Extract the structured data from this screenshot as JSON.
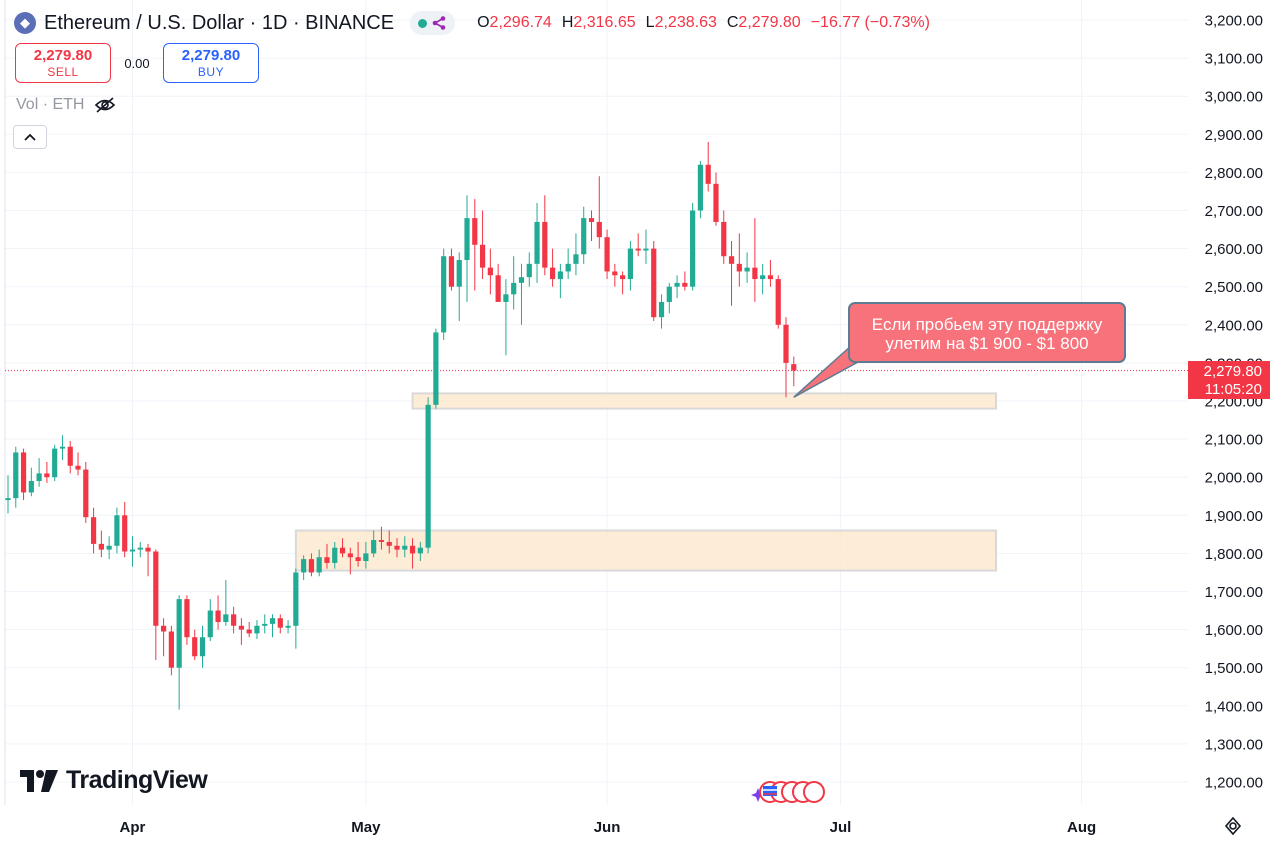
{
  "header": {
    "symbol_title": "Ethereum / U.S. Dollar · 1D · BINANCE",
    "ohlc": [
      {
        "key": "O",
        "value": "2,296.74"
      },
      {
        "key": "H",
        "value": "2,316.65"
      },
      {
        "key": "L",
        "value": "2,238.63"
      },
      {
        "key": "C",
        "value": "2,279.80"
      },
      {
        "key": "",
        "value": "−16.77 (−0.73%)"
      }
    ]
  },
  "trade": {
    "sell_price": "2,279.80",
    "sell_label": "SELL",
    "spread": "0.00",
    "buy_price": "2,279.80",
    "buy_label": "BUY"
  },
  "volume": {
    "label": "Vol · ETH"
  },
  "logo": {
    "text": "TradingView"
  },
  "current_price": {
    "price": "2,279.80",
    "countdown": "11:05:20"
  },
  "annotation": {
    "line1": "Если пробьем эту поддержку",
    "line2": "улетим на $1 900 - $1 800"
  },
  "colors": {
    "up": "#22ab94",
    "down": "#f23645",
    "zone_fill": "#fde9cf",
    "zone_stroke": "#d9d9d9",
    "callout": "#f7727b"
  },
  "icons": [
    "ethereum-coin-icon",
    "eye-off-icon",
    "chevron-up-icon",
    "settings-icon",
    "news-flags-icon"
  ],
  "chart_data": {
    "type": "candlestick",
    "title": "Ethereum / U.S. Dollar · 1D · BINANCE",
    "y_axis_position": "right",
    "ylim": [
      1160,
      3230
    ],
    "y_ticks": [
      1200,
      1300,
      1400,
      1500,
      1600,
      1700,
      1800,
      1900,
      2000,
      2100,
      2200,
      2300,
      2400,
      2500,
      2600,
      2700,
      2800,
      2900,
      3000,
      3100,
      3200
    ],
    "y_tick_labels": [
      "1,200.00",
      "1,300.00",
      "1,400.00",
      "1,500.00",
      "1,600.00",
      "1,700.00",
      "1,800.00",
      "1,900.00",
      "2,000.00",
      "2,100.00",
      "2,200.00",
      "2,300.00",
      "2,400.00",
      "2,500.00",
      "2,600.00",
      "2,700.00",
      "2,800.00",
      "2,900.00",
      "3,000.00",
      "3,100.00",
      "3,200.00"
    ],
    "x_tick_labels": [
      {
        "label": "Apr",
        "date": "2024-04-01"
      },
      {
        "label": "May",
        "date": "2024-05-01"
      },
      {
        "label": "Jun",
        "date": "2024-06-01"
      },
      {
        "label": "Jul",
        "date": "2024-07-01"
      },
      {
        "label": "Aug",
        "date": "2024-08-01"
      }
    ],
    "x_range": [
      "2024-03-16",
      "2024-08-16"
    ],
    "grid": true,
    "current_price": 2279.8,
    "zones": [
      {
        "start": "2024-05-07",
        "end": "2024-07-21",
        "low": 2180,
        "high": 2220
      },
      {
        "start": "2024-04-22",
        "end": "2024-07-21",
        "low": 1755,
        "high": 1860
      }
    ],
    "candles": [
      {
        "date": "2024-03-16",
        "o": 1940,
        "h": 2005,
        "l": 1905,
        "c": 1945
      },
      {
        "date": "2024-03-17",
        "o": 1945,
        "h": 2080,
        "l": 1920,
        "c": 2065
      },
      {
        "date": "2024-03-18",
        "o": 2065,
        "h": 2075,
        "l": 1940,
        "c": 1960
      },
      {
        "date": "2024-03-19",
        "o": 1960,
        "h": 2025,
        "l": 1950,
        "c": 1990
      },
      {
        "date": "2024-03-20",
        "o": 1990,
        "h": 2050,
        "l": 1975,
        "c": 2010
      },
      {
        "date": "2024-03-21",
        "o": 2010,
        "h": 2040,
        "l": 1985,
        "c": 2000
      },
      {
        "date": "2024-03-22",
        "o": 2000,
        "h": 2085,
        "l": 1990,
        "c": 2075
      },
      {
        "date": "2024-03-23",
        "o": 2075,
        "h": 2110,
        "l": 2045,
        "c": 2080
      },
      {
        "date": "2024-03-24",
        "o": 2080,
        "h": 2095,
        "l": 2010,
        "c": 2030
      },
      {
        "date": "2024-03-25",
        "o": 2030,
        "h": 2065,
        "l": 2005,
        "c": 2020
      },
      {
        "date": "2024-03-26",
        "o": 2020,
        "h": 2040,
        "l": 1880,
        "c": 1895
      },
      {
        "date": "2024-03-27",
        "o": 1895,
        "h": 1920,
        "l": 1800,
        "c": 1825
      },
      {
        "date": "2024-03-28",
        "o": 1825,
        "h": 1860,
        "l": 1790,
        "c": 1810
      },
      {
        "date": "2024-03-29",
        "o": 1810,
        "h": 1845,
        "l": 1785,
        "c": 1820
      },
      {
        "date": "2024-03-30",
        "o": 1820,
        "h": 1920,
        "l": 1800,
        "c": 1900
      },
      {
        "date": "2024-03-31",
        "o": 1900,
        "h": 1935,
        "l": 1790,
        "c": 1805
      },
      {
        "date": "2024-04-01",
        "o": 1805,
        "h": 1845,
        "l": 1765,
        "c": 1810
      },
      {
        "date": "2024-04-02",
        "o": 1810,
        "h": 1830,
        "l": 1790,
        "c": 1815
      },
      {
        "date": "2024-04-03",
        "o": 1815,
        "h": 1825,
        "l": 1740,
        "c": 1805
      },
      {
        "date": "2024-04-04",
        "o": 1805,
        "h": 1810,
        "l": 1520,
        "c": 1610
      },
      {
        "date": "2024-04-05",
        "o": 1610,
        "h": 1630,
        "l": 1530,
        "c": 1595
      },
      {
        "date": "2024-04-06",
        "o": 1595,
        "h": 1610,
        "l": 1480,
        "c": 1500
      },
      {
        "date": "2024-04-07",
        "o": 1500,
        "h": 1690,
        "l": 1390,
        "c": 1680
      },
      {
        "date": "2024-04-08",
        "o": 1680,
        "h": 1690,
        "l": 1560,
        "c": 1580
      },
      {
        "date": "2024-04-09",
        "o": 1580,
        "h": 1600,
        "l": 1520,
        "c": 1530
      },
      {
        "date": "2024-04-10",
        "o": 1530,
        "h": 1610,
        "l": 1500,
        "c": 1580
      },
      {
        "date": "2024-04-11",
        "o": 1580,
        "h": 1680,
        "l": 1570,
        "c": 1650
      },
      {
        "date": "2024-04-12",
        "o": 1650,
        "h": 1690,
        "l": 1600,
        "c": 1620
      },
      {
        "date": "2024-04-13",
        "o": 1620,
        "h": 1730,
        "l": 1610,
        "c": 1640
      },
      {
        "date": "2024-04-14",
        "o": 1640,
        "h": 1660,
        "l": 1590,
        "c": 1610
      },
      {
        "date": "2024-04-15",
        "o": 1610,
        "h": 1630,
        "l": 1560,
        "c": 1600
      },
      {
        "date": "2024-04-16",
        "o": 1600,
        "h": 1620,
        "l": 1580,
        "c": 1590
      },
      {
        "date": "2024-04-17",
        "o": 1590,
        "h": 1625,
        "l": 1575,
        "c": 1610
      },
      {
        "date": "2024-04-18",
        "o": 1610,
        "h": 1640,
        "l": 1590,
        "c": 1615
      },
      {
        "date": "2024-04-19",
        "o": 1615,
        "h": 1640,
        "l": 1580,
        "c": 1630
      },
      {
        "date": "2024-04-20",
        "o": 1630,
        "h": 1640,
        "l": 1590,
        "c": 1605
      },
      {
        "date": "2024-04-21",
        "o": 1605,
        "h": 1625,
        "l": 1590,
        "c": 1610
      },
      {
        "date": "2024-04-22",
        "o": 1610,
        "h": 1760,
        "l": 1550,
        "c": 1750
      },
      {
        "date": "2024-04-23",
        "o": 1750,
        "h": 1795,
        "l": 1730,
        "c": 1785
      },
      {
        "date": "2024-04-24",
        "o": 1785,
        "h": 1800,
        "l": 1740,
        "c": 1750
      },
      {
        "date": "2024-04-25",
        "o": 1750,
        "h": 1810,
        "l": 1740,
        "c": 1790
      },
      {
        "date": "2024-04-26",
        "o": 1790,
        "h": 1825,
        "l": 1760,
        "c": 1775
      },
      {
        "date": "2024-04-27",
        "o": 1775,
        "h": 1830,
        "l": 1760,
        "c": 1815
      },
      {
        "date": "2024-04-28",
        "o": 1815,
        "h": 1840,
        "l": 1790,
        "c": 1800
      },
      {
        "date": "2024-04-29",
        "o": 1800,
        "h": 1815,
        "l": 1745,
        "c": 1790
      },
      {
        "date": "2024-04-30",
        "o": 1790,
        "h": 1830,
        "l": 1765,
        "c": 1780
      },
      {
        "date": "2024-05-01",
        "o": 1780,
        "h": 1830,
        "l": 1760,
        "c": 1800
      },
      {
        "date": "2024-05-02",
        "o": 1800,
        "h": 1860,
        "l": 1790,
        "c": 1835
      },
      {
        "date": "2024-05-03",
        "o": 1835,
        "h": 1870,
        "l": 1810,
        "c": 1830
      },
      {
        "date": "2024-05-04",
        "o": 1830,
        "h": 1860,
        "l": 1800,
        "c": 1820
      },
      {
        "date": "2024-05-05",
        "o": 1820,
        "h": 1840,
        "l": 1790,
        "c": 1810
      },
      {
        "date": "2024-05-06",
        "o": 1810,
        "h": 1845,
        "l": 1790,
        "c": 1820
      },
      {
        "date": "2024-05-07",
        "o": 1820,
        "h": 1840,
        "l": 1760,
        "c": 1800
      },
      {
        "date": "2024-05-08",
        "o": 1800,
        "h": 1830,
        "l": 1780,
        "c": 1815
      },
      {
        "date": "2024-05-09",
        "o": 1815,
        "h": 2210,
        "l": 1800,
        "c": 2190
      },
      {
        "date": "2024-05-10",
        "o": 2190,
        "h": 2390,
        "l": 2180,
        "c": 2380
      },
      {
        "date": "2024-05-11",
        "o": 2380,
        "h": 2600,
        "l": 2360,
        "c": 2580
      },
      {
        "date": "2024-05-12",
        "o": 2580,
        "h": 2600,
        "l": 2490,
        "c": 2500
      },
      {
        "date": "2024-05-13",
        "o": 2500,
        "h": 2590,
        "l": 2410,
        "c": 2570
      },
      {
        "date": "2024-05-14",
        "o": 2570,
        "h": 2740,
        "l": 2460,
        "c": 2680
      },
      {
        "date": "2024-05-15",
        "o": 2680,
        "h": 2730,
        "l": 2490,
        "c": 2610
      },
      {
        "date": "2024-05-16",
        "o": 2610,
        "h": 2700,
        "l": 2520,
        "c": 2550
      },
      {
        "date": "2024-05-17",
        "o": 2550,
        "h": 2600,
        "l": 2480,
        "c": 2530
      },
      {
        "date": "2024-05-18",
        "o": 2530,
        "h": 2560,
        "l": 2470,
        "c": 2460
      },
      {
        "date": "2024-05-19",
        "o": 2460,
        "h": 2520,
        "l": 2320,
        "c": 2480
      },
      {
        "date": "2024-05-20",
        "o": 2480,
        "h": 2580,
        "l": 2440,
        "c": 2510
      },
      {
        "date": "2024-05-21",
        "o": 2510,
        "h": 2560,
        "l": 2400,
        "c": 2525
      },
      {
        "date": "2024-05-22",
        "o": 2525,
        "h": 2590,
        "l": 2500,
        "c": 2560
      },
      {
        "date": "2024-05-23",
        "o": 2560,
        "h": 2720,
        "l": 2510,
        "c": 2670
      },
      {
        "date": "2024-05-24",
        "o": 2670,
        "h": 2740,
        "l": 2530,
        "c": 2550
      },
      {
        "date": "2024-05-25",
        "o": 2550,
        "h": 2600,
        "l": 2500,
        "c": 2520
      },
      {
        "date": "2024-05-26",
        "o": 2520,
        "h": 2560,
        "l": 2470,
        "c": 2540
      },
      {
        "date": "2024-05-27",
        "o": 2540,
        "h": 2600,
        "l": 2520,
        "c": 2560
      },
      {
        "date": "2024-05-28",
        "o": 2560,
        "h": 2640,
        "l": 2530,
        "c": 2585
      },
      {
        "date": "2024-05-29",
        "o": 2585,
        "h": 2710,
        "l": 2560,
        "c": 2680
      },
      {
        "date": "2024-05-30",
        "o": 2680,
        "h": 2700,
        "l": 2620,
        "c": 2670
      },
      {
        "date": "2024-05-31",
        "o": 2670,
        "h": 2790,
        "l": 2600,
        "c": 2630
      },
      {
        "date": "2024-06-01",
        "o": 2630,
        "h": 2650,
        "l": 2520,
        "c": 2540
      },
      {
        "date": "2024-06-02",
        "o": 2540,
        "h": 2560,
        "l": 2500,
        "c": 2530
      },
      {
        "date": "2024-06-03",
        "o": 2530,
        "h": 2540,
        "l": 2480,
        "c": 2520
      },
      {
        "date": "2024-06-04",
        "o": 2520,
        "h": 2620,
        "l": 2490,
        "c": 2600
      },
      {
        "date": "2024-06-05",
        "o": 2600,
        "h": 2640,
        "l": 2580,
        "c": 2595
      },
      {
        "date": "2024-06-06",
        "o": 2595,
        "h": 2650,
        "l": 2560,
        "c": 2600
      },
      {
        "date": "2024-06-07",
        "o": 2600,
        "h": 2620,
        "l": 2410,
        "c": 2420
      },
      {
        "date": "2024-06-08",
        "o": 2420,
        "h": 2480,
        "l": 2390,
        "c": 2460
      },
      {
        "date": "2024-06-09",
        "o": 2460,
        "h": 2510,
        "l": 2430,
        "c": 2500
      },
      {
        "date": "2024-06-10",
        "o": 2500,
        "h": 2530,
        "l": 2470,
        "c": 2510
      },
      {
        "date": "2024-06-11",
        "o": 2510,
        "h": 2540,
        "l": 2490,
        "c": 2500
      },
      {
        "date": "2024-06-12",
        "o": 2500,
        "h": 2720,
        "l": 2490,
        "c": 2700
      },
      {
        "date": "2024-06-13",
        "o": 2700,
        "h": 2830,
        "l": 2680,
        "c": 2820
      },
      {
        "date": "2024-06-14",
        "o": 2820,
        "h": 2880,
        "l": 2750,
        "c": 2770
      },
      {
        "date": "2024-06-15",
        "o": 2770,
        "h": 2800,
        "l": 2660,
        "c": 2670
      },
      {
        "date": "2024-06-16",
        "o": 2670,
        "h": 2700,
        "l": 2560,
        "c": 2580
      },
      {
        "date": "2024-06-17",
        "o": 2580,
        "h": 2620,
        "l": 2450,
        "c": 2560
      },
      {
        "date": "2024-06-18",
        "o": 2560,
        "h": 2640,
        "l": 2500,
        "c": 2540
      },
      {
        "date": "2024-06-19",
        "o": 2540,
        "h": 2590,
        "l": 2510,
        "c": 2550
      },
      {
        "date": "2024-06-20",
        "o": 2550,
        "h": 2680,
        "l": 2460,
        "c": 2520
      },
      {
        "date": "2024-06-21",
        "o": 2520,
        "h": 2560,
        "l": 2480,
        "c": 2530
      },
      {
        "date": "2024-06-22",
        "o": 2530,
        "h": 2570,
        "l": 2500,
        "c": 2520
      },
      {
        "date": "2024-06-23",
        "o": 2520,
        "h": 2530,
        "l": 2390,
        "c": 2400
      },
      {
        "date": "2024-06-24",
        "o": 2400,
        "h": 2420,
        "l": 2210,
        "c": 2300
      },
      {
        "date": "2024-06-25",
        "o": 2296.74,
        "h": 2316.65,
        "l": 2238.63,
        "c": 2279.8
      }
    ]
  }
}
